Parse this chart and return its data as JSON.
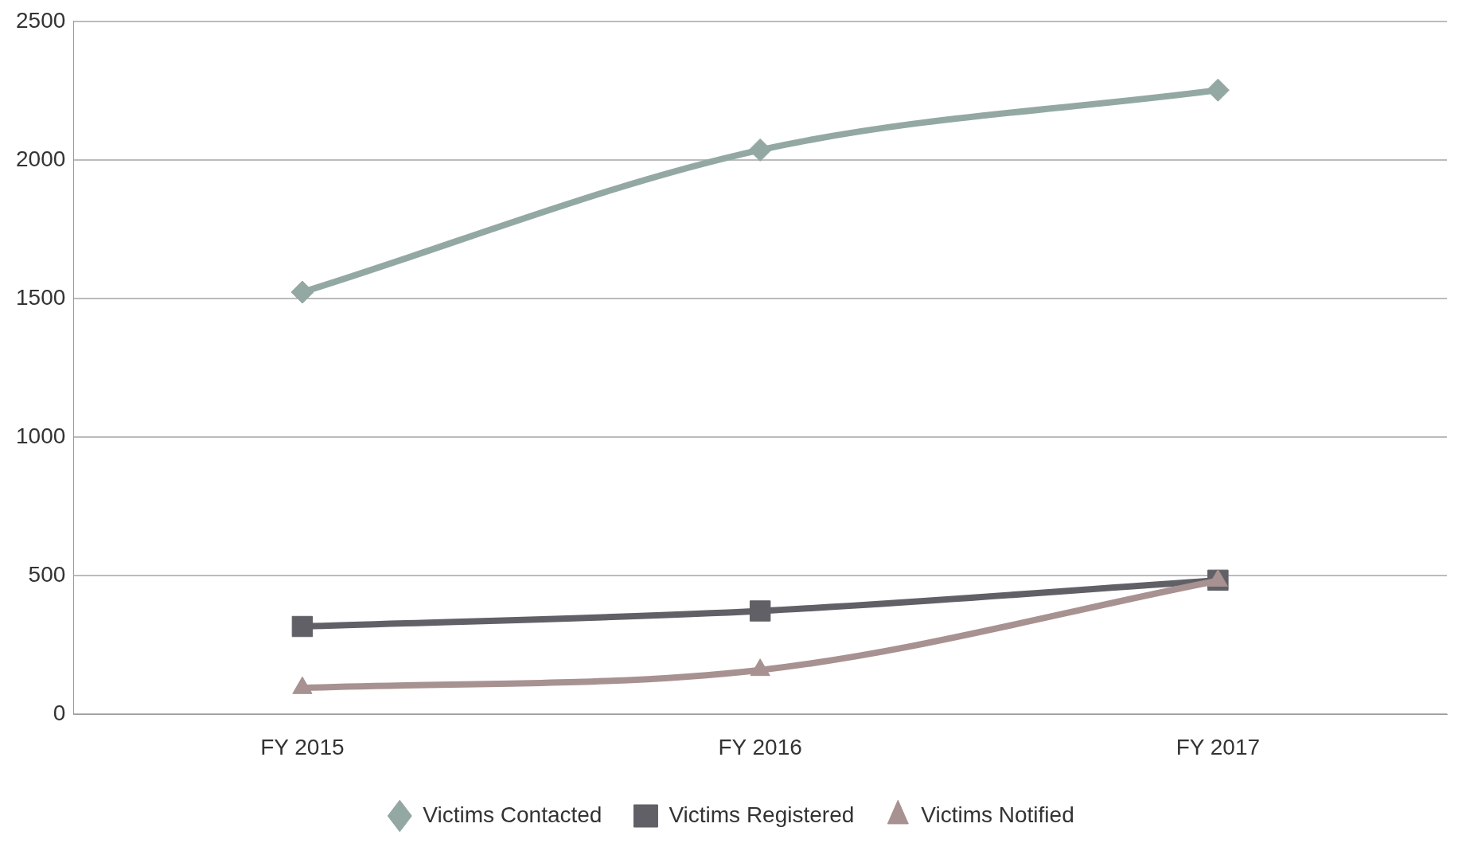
{
  "chart_data": {
    "type": "line",
    "categories": [
      "FY 2015",
      "FY 2016",
      "FY 2017"
    ],
    "series": [
      {
        "name": "Victims Contacted",
        "color": "#93a8a3",
        "marker": "diamond",
        "values": [
          1523,
          2036,
          2252
        ]
      },
      {
        "name": "Victims Registered",
        "color": "#606066",
        "marker": "square",
        "values": [
          317,
          373,
          484
        ]
      },
      {
        "name": "Victims Notified",
        "color": "#a79291",
        "marker": "triangle",
        "values": [
          95,
          160,
          482
        ]
      }
    ],
    "ylim": [
      0,
      2500
    ],
    "yticks": [
      0,
      500,
      1000,
      1500,
      2000,
      2500
    ],
    "grid": "y",
    "legend": "bottom",
    "line_style": "solid"
  }
}
